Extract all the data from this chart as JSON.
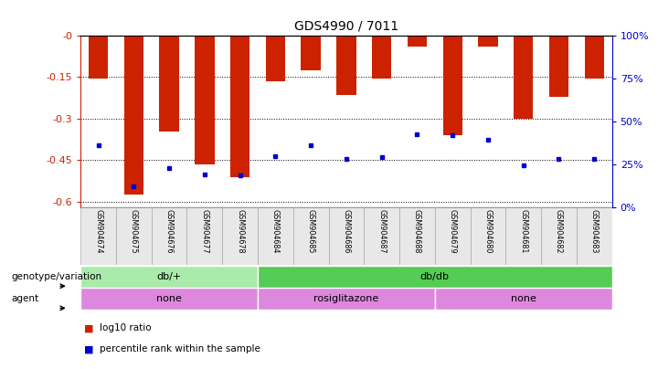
{
  "title": "GDS4990 / 7011",
  "samples": [
    "GSM904674",
    "GSM904675",
    "GSM904676",
    "GSM904677",
    "GSM904678",
    "GSM904684",
    "GSM904685",
    "GSM904686",
    "GSM904687",
    "GSM904688",
    "GSM904679",
    "GSM904680",
    "GSM904681",
    "GSM904682",
    "GSM904683"
  ],
  "log10_values": [
    -0.155,
    -0.575,
    -0.345,
    -0.465,
    -0.51,
    -0.165,
    -0.125,
    -0.215,
    -0.155,
    -0.04,
    -0.36,
    -0.04,
    -0.3,
    -0.22,
    -0.155
  ],
  "percentile_values": [
    -0.395,
    -0.545,
    -0.48,
    -0.5,
    -0.505,
    -0.435,
    -0.395,
    -0.445,
    -0.44,
    -0.355,
    -0.36,
    -0.375,
    -0.47,
    -0.445,
    -0.445
  ],
  "genotype_groups": [
    {
      "label": "db/+",
      "start": 0,
      "end": 5,
      "color": "#aaeaaa"
    },
    {
      "label": "db/db",
      "start": 5,
      "end": 15,
      "color": "#55cc55"
    }
  ],
  "agent_groups": [
    {
      "label": "none",
      "start": 0,
      "end": 5,
      "color": "#dd88dd"
    },
    {
      "label": "rosiglitazone",
      "start": 5,
      "end": 10,
      "color": "#dd88dd"
    },
    {
      "label": "none",
      "start": 10,
      "end": 15,
      "color": "#dd88dd"
    }
  ],
  "ylim_left": [
    -0.62,
    0.0
  ],
  "ylim_right": [
    0,
    100
  ],
  "bar_color": "#cc2200",
  "dot_color": "#0000cc",
  "background_color": "#ffffff",
  "tick_color_left": "#cc2200",
  "tick_color_right": "#0000cc",
  "yticks_left": [
    0.0,
    -0.15,
    -0.3,
    -0.45,
    -0.6
  ],
  "yticks_right": [
    100,
    75,
    50,
    25,
    0
  ],
  "legend_items": [
    {
      "color": "#cc2200",
      "label": "log10 ratio"
    },
    {
      "color": "#0000cc",
      "label": "percentile rank within the sample"
    }
  ]
}
